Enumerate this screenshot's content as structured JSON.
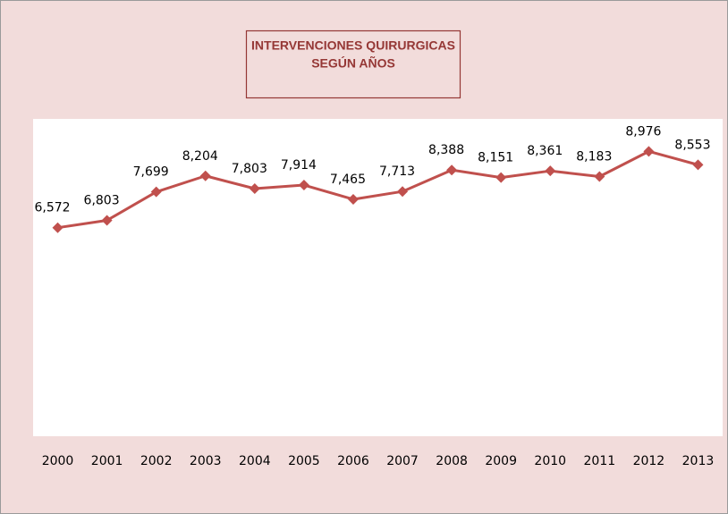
{
  "chart_data": {
    "type": "line",
    "title": [
      "INTERVENCIONES QUIRURGICAS",
      "SEGÚN AÑOS"
    ],
    "categories": [
      "2000",
      "2001",
      "2002",
      "2003",
      "2004",
      "2005",
      "2006",
      "2007",
      "2008",
      "2009",
      "2010",
      "2011",
      "2012",
      "2013"
    ],
    "series": [
      {
        "name": "Intervenciones",
        "color": "#c0504d",
        "values": [
          6572,
          6803,
          7699,
          8204,
          7803,
          7914,
          7465,
          7713,
          8388,
          8151,
          8361,
          8183,
          8976,
          8553
        ],
        "value_labels": [
          "6,572",
          "6,803",
          "7,699",
          "8,204",
          "7,803",
          "7,914",
          "7,465",
          "7,713",
          "8,388",
          "8,151",
          "8,361",
          "8,183",
          "8,976",
          "8,553"
        ]
      }
    ],
    "ylim": [
      0,
      10000
    ]
  }
}
